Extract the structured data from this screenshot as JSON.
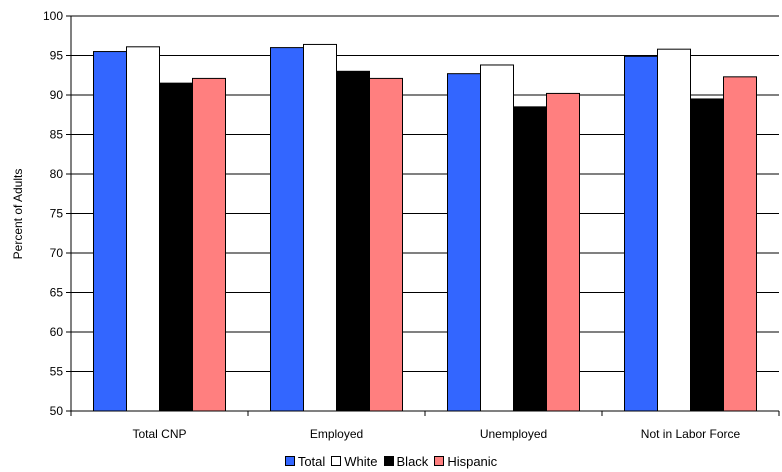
{
  "chart_data": {
    "type": "bar",
    "title": "",
    "xlabel": "",
    "ylabel": "Percent of Adults",
    "ylim": [
      50,
      100
    ],
    "yticks": [
      50,
      55,
      60,
      65,
      70,
      75,
      80,
      85,
      90,
      95,
      100
    ],
    "categories": [
      "Total CNP",
      "Employed",
      "Unemployed",
      "Not in Labor Force"
    ],
    "series": [
      {
        "name": "Total",
        "color": "#3366ff",
        "values": [
          95.5,
          96.0,
          92.7,
          94.9
        ]
      },
      {
        "name": "White",
        "color": "#ffffff",
        "values": [
          96.1,
          96.4,
          93.8,
          95.8
        ]
      },
      {
        "name": "Black",
        "color": "#000000",
        "values": [
          91.5,
          93.0,
          88.5,
          89.5
        ]
      },
      {
        "name": "Hispanic",
        "color": "#ff7f7f",
        "values": [
          92.1,
          92.1,
          90.2,
          92.3
        ]
      }
    ],
    "grid": true,
    "legend_position": "bottom-center"
  }
}
